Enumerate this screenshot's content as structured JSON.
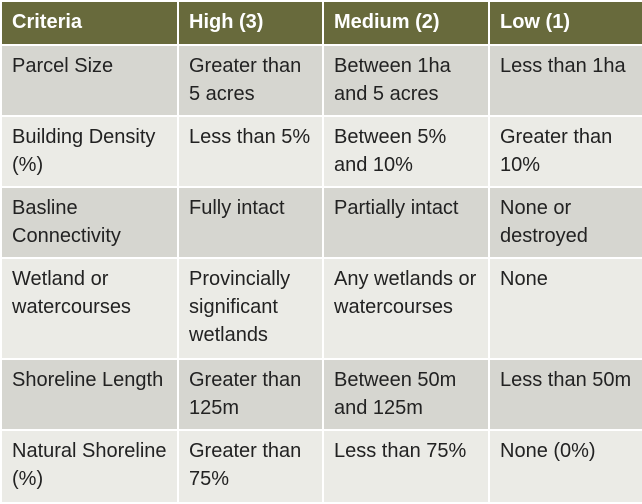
{
  "table": {
    "header": [
      "Criteria",
      "High (3)",
      "Medium (2)",
      "Low (1)"
    ],
    "rows": [
      [
        "Parcel Size",
        "Greater than 5 acres",
        "Between 1ha and 5 acres",
        "Less than 1ha"
      ],
      [
        "Building Density (%)",
        "Less than 5%",
        "Between 5% and 10%",
        "Greater than 10%"
      ],
      [
        "Basline Connectivity",
        "Fully intact",
        "Partially intact",
        "None or destroyed"
      ],
      [
        "Wetland or watercourses",
        "Provincially significant wetlands",
        "Any wetlands or watercourses",
        "None"
      ],
      [
        "Shoreline Length",
        "Greater than 125m",
        "Between 50m and 125m",
        "Less than 50m"
      ],
      [
        "Natural Shoreline (%)",
        "Greater than 75%",
        "Less than 75%",
        "None (0%)"
      ]
    ]
  }
}
